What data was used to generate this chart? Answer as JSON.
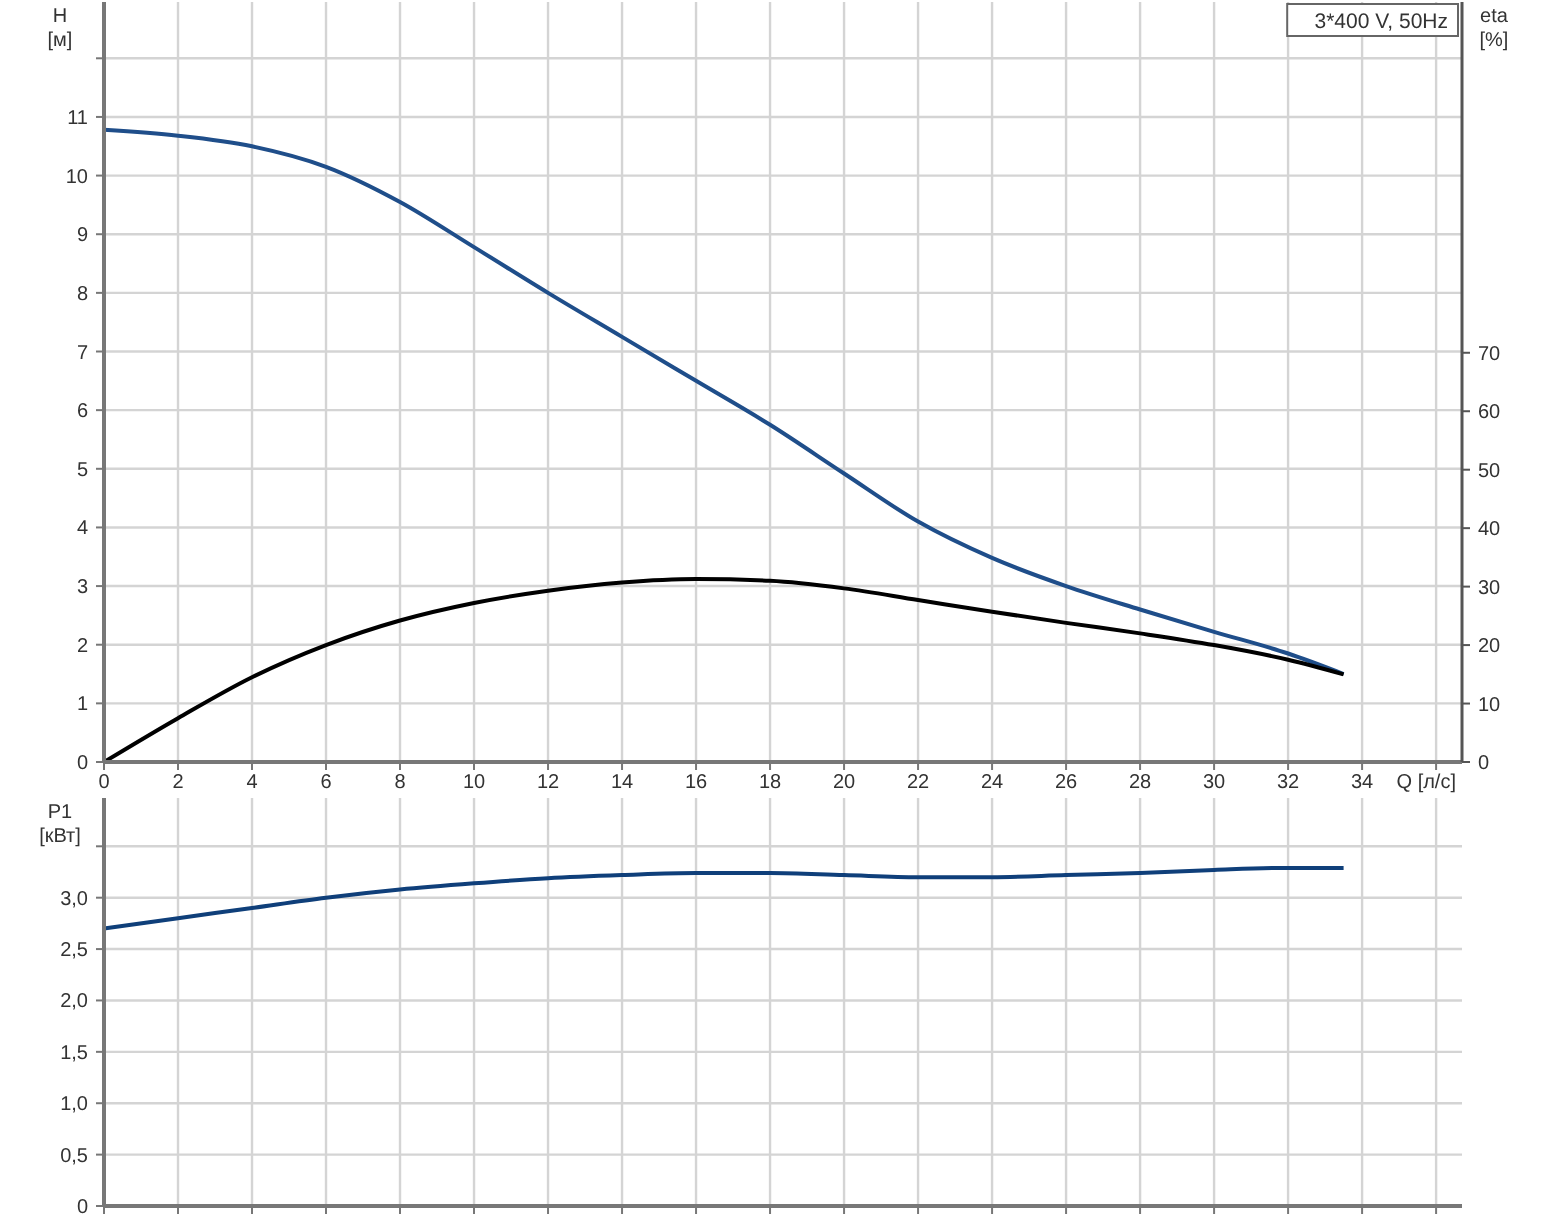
{
  "chart_data": [
    {
      "type": "line",
      "xlabel": "Q [л/с]",
      "ylabel": "H [м]",
      "y2label": "eta [%]",
      "annotations": [
        "3*400 V, 50Hz"
      ],
      "grid": true,
      "xlim": [
        0,
        36.7
      ],
      "xticks": [
        0,
        2,
        4,
        6,
        8,
        10,
        12,
        14,
        16,
        18,
        20,
        22,
        24,
        26,
        28,
        30,
        32,
        34,
        {
          "value": 36,
          "label": null
        }
      ],
      "ylim": [
        0,
        12.96
      ],
      "yticks": [
        0,
        1,
        2,
        3,
        4,
        5,
        6,
        7,
        8,
        9,
        10,
        11,
        {
          "value": 12,
          "label": null
        }
      ],
      "y2lim": [
        0,
        130
      ],
      "y2ticks": [
        0,
        10,
        20,
        30,
        40,
        50,
        60,
        70
      ],
      "series": [
        {
          "color": "#1f4e8a",
          "x": [
            0,
            2,
            4,
            6,
            8,
            10,
            12,
            14,
            16,
            18,
            20,
            22,
            24,
            26,
            28,
            30,
            32,
            33.5
          ],
          "values": [
            10.78,
            10.68,
            10.5,
            10.15,
            9.55,
            8.78,
            8.0,
            7.25,
            6.5,
            5.75,
            4.92,
            4.1,
            3.48,
            3.0,
            2.6,
            2.22,
            1.85,
            1.5
          ]
        },
        {
          "color": "#000000",
          "axis": "y2",
          "x": [
            0,
            2,
            4,
            6,
            8,
            10,
            12,
            14,
            16,
            18,
            20,
            22,
            24,
            26,
            28,
            30,
            32,
            33.5
          ],
          "values": [
            0,
            7.5,
            14.5,
            20,
            24.2,
            27.2,
            29.3,
            30.7,
            31.3,
            31,
            29.7,
            27.7,
            25.7,
            23.8,
            22,
            20,
            17.5,
            15
          ]
        }
      ]
    },
    {
      "type": "line",
      "ylabel": "P1 [кВт]",
      "grid": true,
      "tick_labels": "y",
      "xlim": [
        0,
        36.7
      ],
      "xticks": [
        0,
        2,
        4,
        6,
        8,
        10,
        12,
        14,
        16,
        18,
        20,
        22,
        24,
        26,
        28,
        30,
        32,
        34,
        36
      ],
      "ylim": [
        0,
        3.97
      ],
      "yticks": [
        0,
        {
          "value": 0.5,
          "label": "0,5"
        },
        {
          "value": 1,
          "label": "1,0"
        },
        {
          "value": 1.5,
          "label": "1,5"
        },
        {
          "value": 2,
          "label": "2,0"
        },
        {
          "value": 2.5,
          "label": "2,5"
        },
        {
          "value": 3,
          "label": "3,0"
        },
        {
          "value": 3.5,
          "label": null
        }
      ],
      "series": [
        {
          "color": "#0f3f7a",
          "x": [
            0,
            2,
            4,
            6,
            8,
            10,
            12,
            14,
            16,
            18,
            20,
            22,
            24,
            26,
            28,
            30,
            32,
            33.5
          ],
          "values": [
            2.7,
            2.8,
            2.9,
            3.0,
            3.08,
            3.14,
            3.19,
            3.22,
            3.24,
            3.24,
            3.22,
            3.2,
            3.2,
            3.22,
            3.24,
            3.27,
            3.29,
            3.29
          ]
        }
      ]
    }
  ]
}
